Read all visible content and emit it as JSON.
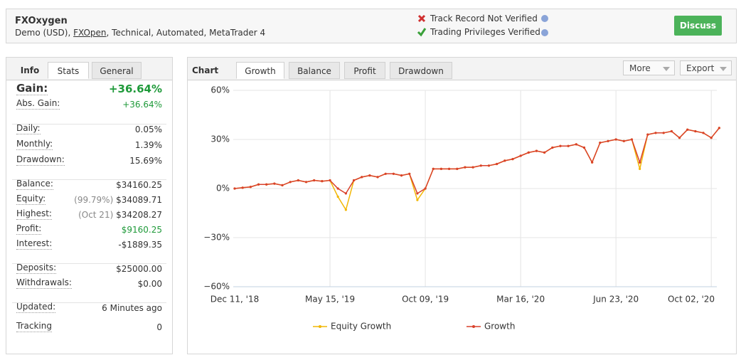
{
  "header": {
    "title": "FXOxygen",
    "subtitle_prefix": "Demo (USD),",
    "broker": "FXOpen",
    "subtitle_suffix": ", Technical, Automated, MetaTrader 4",
    "track_record": "Track Record Not Verified",
    "privileges": "Trading Privileges Verified",
    "button": "Discuss"
  },
  "info": {
    "tabs": [
      "Info",
      "Stats",
      "General"
    ],
    "groups": [
      [
        {
          "label": "Gain:",
          "value": "+36.64%",
          "color": "#1f9a3a"
        },
        {
          "label": "Abs. Gain:",
          "value": "+36.64%",
          "color": "#1f9a3a"
        }
      ],
      [
        {
          "label": "Daily:",
          "value": "0.05%"
        },
        {
          "label": "Monthly:",
          "value": "1.39%"
        },
        {
          "label": "Drawdown:",
          "value": "15.69%"
        }
      ],
      [
        {
          "label": "Balance:",
          "value": "$34160.25"
        },
        {
          "label": "Equity:",
          "note": "(99.79%)",
          "value": "$34089.71"
        },
        {
          "label": "Highest:",
          "note": "(Oct 21)",
          "value": "$34208.27"
        },
        {
          "label": "Profit:",
          "value": "$9160.25",
          "color": "#1f9a3a"
        },
        {
          "label": "Interest:",
          "value": "-$1889.35"
        }
      ],
      [
        {
          "label": "Deposits:",
          "value": "$25000.00"
        },
        {
          "label": "Withdrawals:",
          "value": "$0.00"
        }
      ],
      [
        {
          "label": "Updated:",
          "value": "6 Minutes ago"
        },
        {
          "label": "Tracking",
          "value": "0"
        }
      ]
    ]
  },
  "chart_panel": {
    "tabs": [
      "Chart",
      "Growth",
      "Balance",
      "Profit",
      "Drawdown"
    ],
    "buttons": [
      "More",
      "Export"
    ]
  },
  "chart_data": {
    "type": "line",
    "categories": [
      "Dec 11, '18",
      null,
      null,
      null,
      null,
      null,
      null,
      null,
      null,
      null,
      null,
      null,
      "May 15, '19",
      null,
      null,
      null,
      null,
      null,
      null,
      null,
      null,
      null,
      null,
      null,
      "Oct 09, '19",
      null,
      null,
      null,
      null,
      null,
      null,
      null,
      null,
      null,
      null,
      null,
      "Mar 16, '20",
      null,
      null,
      null,
      null,
      null,
      null,
      null,
      null,
      null,
      null,
      null,
      "Jun 23, '20",
      null,
      null,
      null,
      null,
      null,
      null,
      null,
      null,
      null,
      null,
      null,
      "Oct 02, '20",
      null
    ],
    "series": [
      {
        "name": "Equity Growth",
        "color": "#f2b705",
        "values": [
          0,
          0.5,
          1,
          2.5,
          2.5,
          3,
          2,
          4,
          5,
          4,
          5,
          4.5,
          5,
          -5,
          -13,
          5,
          7,
          8,
          7,
          9,
          9,
          8,
          9,
          -7,
          0,
          12,
          12,
          12,
          12,
          13,
          13,
          14,
          14,
          15,
          17,
          18,
          20,
          22,
          23,
          22,
          25,
          26,
          26,
          27,
          25,
          16,
          28,
          29,
          30,
          29,
          30,
          12,
          33,
          34,
          34,
          35,
          31,
          36,
          35,
          34,
          31,
          37
        ]
      },
      {
        "name": "Growth",
        "color": "#d9412c",
        "values": [
          0,
          0.5,
          1,
          2.5,
          2.5,
          3,
          2,
          4,
          5,
          4,
          5,
          4.5,
          5,
          0,
          -3,
          5,
          7,
          8,
          7,
          9,
          9,
          8,
          9,
          -3,
          0,
          12,
          12,
          12,
          12,
          13,
          13,
          14,
          14,
          15,
          17,
          18,
          20,
          22,
          23,
          22,
          25,
          26,
          26,
          27,
          25,
          16,
          28,
          29,
          30,
          29,
          30,
          16,
          33,
          34,
          34,
          35,
          31,
          36,
          35,
          34,
          31,
          37
        ]
      }
    ],
    "ylim": [
      -60,
      60
    ],
    "yticks": [
      {
        "value": -60,
        "label": "−60%"
      },
      {
        "value": -30,
        "label": "−30%"
      },
      {
        "value": 0,
        "label": "0%"
      },
      {
        "value": 30,
        "label": "30%"
      },
      {
        "value": 60,
        "label": "60%"
      }
    ],
    "grid": true
  }
}
